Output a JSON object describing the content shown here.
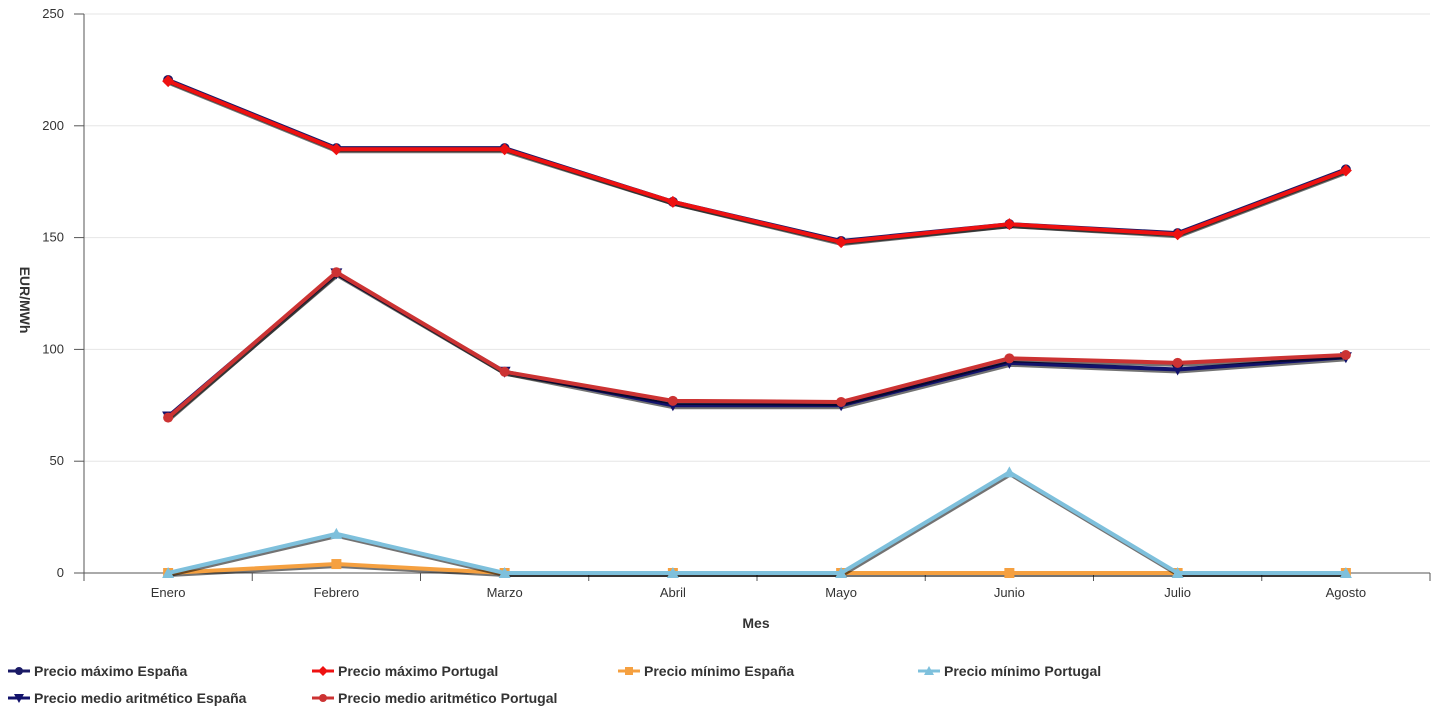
{
  "chart_data": {
    "type": "line",
    "title": "",
    "xlabel": "Mes",
    "ylabel": "EUR/MWh",
    "ylim": [
      0,
      250
    ],
    "yticks": [
      0,
      50,
      100,
      150,
      200,
      250
    ],
    "grid": true,
    "legend_position": "bottom",
    "categories": [
      "Enero",
      "Febrero",
      "Marzo",
      "Abril",
      "Mayo",
      "Junio",
      "Julio",
      "Agosto"
    ],
    "series": [
      {
        "name": "Precio máximo España",
        "color": "#1a1a66",
        "marker": "circle",
        "values": [
          220.5,
          190,
          190,
          166,
          148.5,
          156,
          152,
          180.5
        ]
      },
      {
        "name": "Precio máximo Portugal",
        "color": "#ee1111",
        "marker": "diamond",
        "values": [
          220,
          189.5,
          189.5,
          166,
          148,
          156,
          151.5,
          180
        ]
      },
      {
        "name": "Precio mínimo España",
        "color": "#f5a040",
        "marker": "square",
        "values": [
          0,
          4,
          0,
          0,
          0,
          0,
          0,
          0
        ]
      },
      {
        "name": "Precio mínimo Portugal",
        "color": "#7ec0dc",
        "marker": "triangle",
        "values": [
          0,
          17.5,
          0,
          0,
          0,
          45,
          0,
          0
        ]
      },
      {
        "name": "Precio medio aritmético España",
        "color": "#12126b",
        "marker": "triangle-down",
        "values": [
          70,
          134,
          90,
          75,
          75,
          94,
          91,
          96.5
        ]
      },
      {
        "name": "Precio medio aritmético Portugal",
        "color": "#cc3333",
        "marker": "circle",
        "values": [
          69.5,
          134.5,
          90,
          77,
          76.5,
          96,
          94,
          97.5
        ]
      }
    ]
  }
}
